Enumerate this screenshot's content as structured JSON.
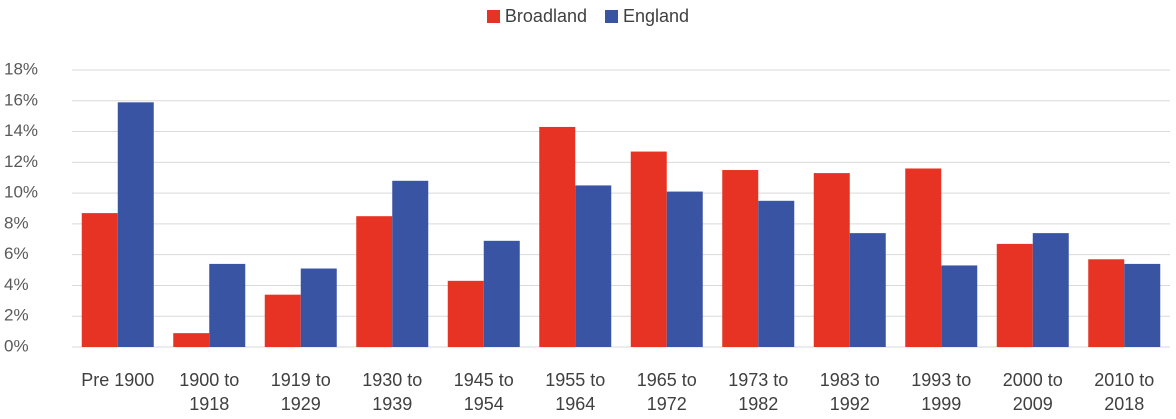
{
  "chart_data": {
    "type": "bar",
    "categories": [
      "Pre 1900",
      "1900 to 1918",
      "1919 to 1929",
      "1930 to 1939",
      "1945 to 1954",
      "1955 to 1964",
      "1965 to 1972",
      "1973 to 1982",
      "1983 to 1992",
      "1993 to 1999",
      "2000 to 2009",
      "2010 to 2018"
    ],
    "series": [
      {
        "name": "Broadland",
        "color": "#e63323",
        "values": [
          8.7,
          0.9,
          3.4,
          8.5,
          4.3,
          14.3,
          12.7,
          11.5,
          11.3,
          11.6,
          6.7,
          5.7
        ]
      },
      {
        "name": "England",
        "color": "#3a54a4",
        "values": [
          15.9,
          5.4,
          5.1,
          10.8,
          6.9,
          10.5,
          10.1,
          9.5,
          7.4,
          5.3,
          7.4,
          5.4
        ]
      }
    ],
    "ylim": [
      0,
      18
    ],
    "yticks": [
      {
        "value": 0,
        "label": "0%"
      },
      {
        "value": 2,
        "label": "2%"
      },
      {
        "value": 4,
        "label": "4%"
      },
      {
        "value": 6,
        "label": "6%"
      },
      {
        "value": 8,
        "label": "8%"
      },
      {
        "value": 10,
        "label": "10%"
      },
      {
        "value": 12,
        "label": "12%"
      },
      {
        "value": 14,
        "label": "14%"
      },
      {
        "value": 16,
        "label": "16%"
      },
      {
        "value": 18,
        "label": "18%"
      }
    ],
    "grid": true,
    "legend": "top"
  }
}
